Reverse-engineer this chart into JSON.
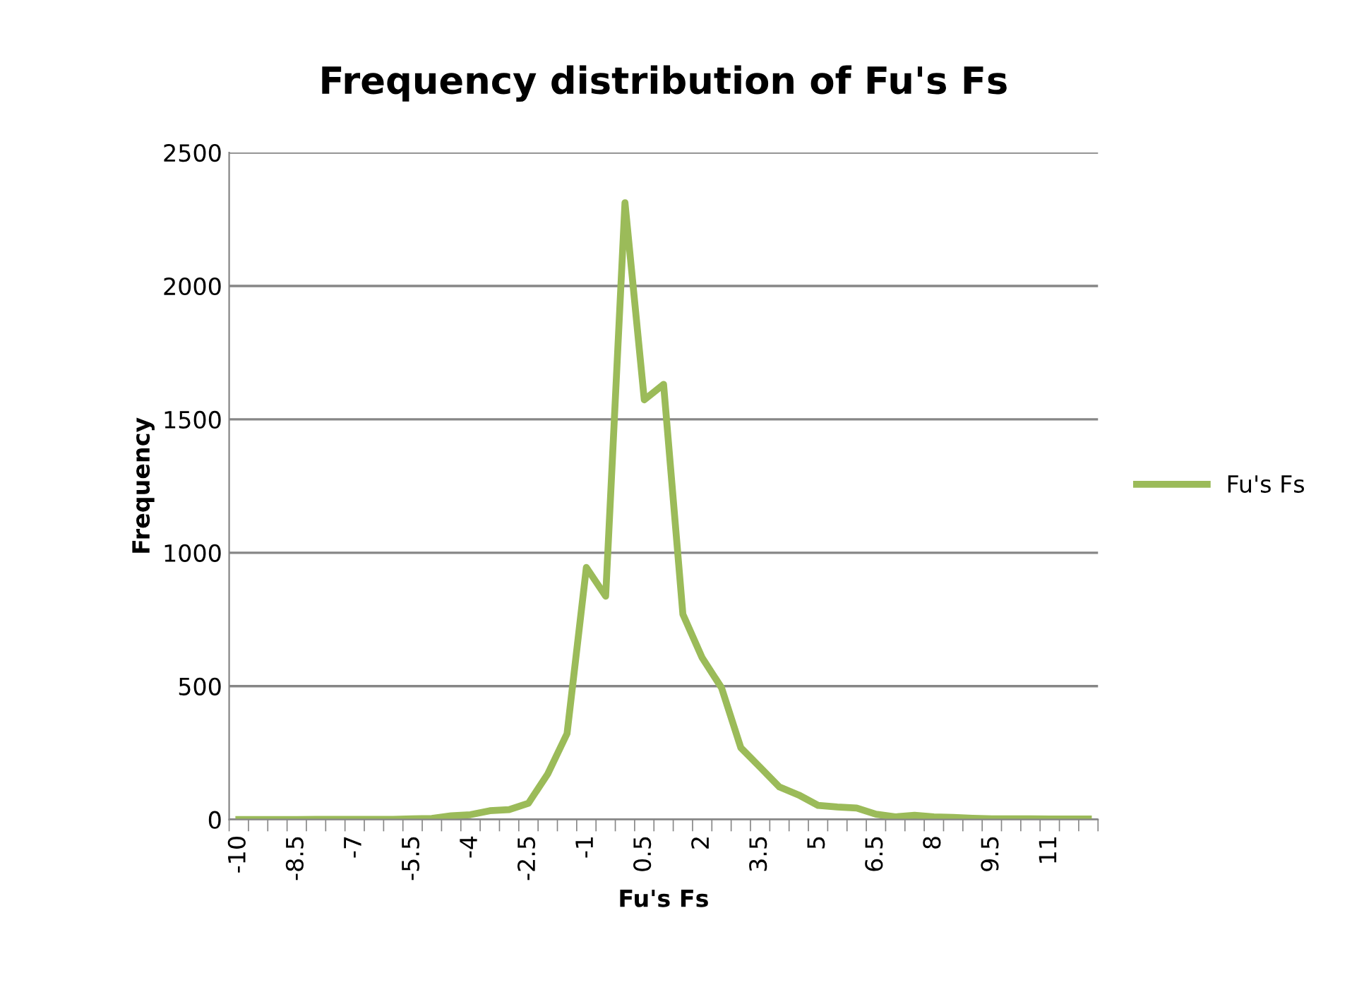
{
  "chart_data": {
    "type": "line",
    "title": "Frequency distribution of Fu's Fs",
    "xlabel": "Fu's Fs",
    "ylabel": "Frequency",
    "categories": [
      "-10",
      null,
      null,
      "-8.5",
      null,
      null,
      "-7",
      null,
      null,
      "-5.5",
      null,
      null,
      "-4",
      null,
      null,
      "-2.5",
      null,
      null,
      "-1",
      null,
      null,
      "0.5",
      null,
      null,
      "2",
      null,
      null,
      "3.5",
      null,
      null,
      "5",
      null,
      null,
      "6.5",
      null,
      null,
      "8",
      null,
      null,
      "9.5",
      null,
      null,
      "11",
      null,
      null
    ],
    "series": [
      {
        "name": "Fu's Fs",
        "color": "#9bbb59",
        "values": [
          0,
          0,
          0,
          0,
          1,
          1,
          1,
          1,
          1,
          3,
          4,
          14,
          18,
          33,
          37,
          61,
          171,
          322,
          945,
          837,
          2312,
          1573,
          1631,
          769,
          606,
          494,
          269,
          196,
          122,
          92,
          53,
          47,
          43,
          20,
          10,
          16,
          10,
          8,
          5,
          3,
          3,
          3,
          2,
          2,
          2
        ]
      }
    ],
    "ylim": [
      0,
      2500
    ],
    "yticks": [
      0,
      500,
      1000,
      1500,
      2000,
      2500
    ],
    "grid": "y",
    "legend": "right",
    "marker": "none",
    "line_style": "solid"
  }
}
